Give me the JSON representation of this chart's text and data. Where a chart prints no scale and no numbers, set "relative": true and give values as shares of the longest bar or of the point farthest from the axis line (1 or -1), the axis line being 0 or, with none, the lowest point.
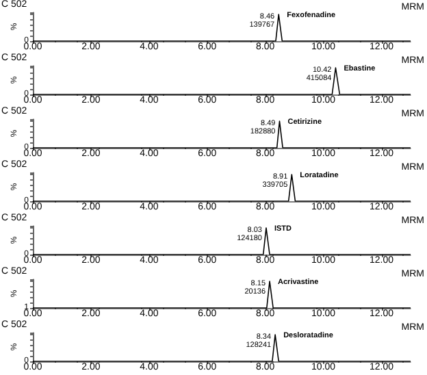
{
  "chart_data": [
    {
      "type": "line",
      "title": "C 502",
      "subtitle": "MRM",
      "ylabel": "%",
      "relative": true,
      "xlim": [
        0,
        13
      ],
      "xticks": [
        {
          "value": 0,
          "label": "0.00"
        },
        {
          "value": 2,
          "label": "2.00"
        },
        {
          "value": 4,
          "label": "4.00"
        },
        {
          "value": 6,
          "label": "6.00"
        },
        {
          "value": 8,
          "label": "8.00"
        },
        {
          "value": 10,
          "label": "10.00"
        },
        {
          "value": 12,
          "label": "12.00"
        }
      ],
      "annotations": [
        "0",
        {
          "text": "8.46\n139767",
          "x": 8.46,
          "y": 1
        }
      ],
      "series": [
        {
          "name": "Fexofenadine",
          "color": "#000000",
          "x": [
            0,
            8.36,
            8.46,
            8.58,
            13
          ],
          "values": [
            0,
            0,
            1,
            0,
            0
          ]
        }
      ]
    },
    {
      "type": "line",
      "title": "C 502",
      "subtitle": "MRM",
      "ylabel": "%",
      "relative": true,
      "xlim": [
        0,
        13
      ],
      "xticks": [
        {
          "value": 0,
          "label": "0.00"
        },
        {
          "value": 2,
          "label": "2.00"
        },
        {
          "value": 4,
          "label": "4.00"
        },
        {
          "value": 6,
          "label": "6.00"
        },
        {
          "value": 8,
          "label": "8.00"
        },
        {
          "value": 10,
          "label": "10.00"
        },
        {
          "value": 12,
          "label": "12.00"
        }
      ],
      "annotations": [
        "0",
        {
          "text": "10.42\n415084",
          "x": 10.42,
          "y": 1
        }
      ],
      "series": [
        {
          "name": "Ebastine",
          "color": "#000000",
          "x": [
            0,
            10.3,
            10.42,
            10.56,
            13
          ],
          "values": [
            0,
            0,
            1,
            0,
            0
          ]
        }
      ]
    },
    {
      "type": "line",
      "title": "C 502",
      "subtitle": "MRM",
      "ylabel": "%",
      "relative": true,
      "xlim": [
        0,
        13
      ],
      "xticks": [
        {
          "value": 0,
          "label": "0.00"
        },
        {
          "value": 2,
          "label": "2.00"
        },
        {
          "value": 4,
          "label": "4.00"
        },
        {
          "value": 6,
          "label": "6.00"
        },
        {
          "value": 8,
          "label": "8.00"
        },
        {
          "value": 10,
          "label": "10.00"
        },
        {
          "value": 12,
          "label": "12.00"
        }
      ],
      "annotations": [
        "0",
        {
          "text": "8.49\n182880",
          "x": 8.49,
          "y": 1
        }
      ],
      "series": [
        {
          "name": "Cetirizine",
          "color": "#000000",
          "x": [
            0,
            8.4,
            8.49,
            8.6,
            13
          ],
          "values": [
            0,
            0,
            1,
            0,
            0
          ]
        }
      ]
    },
    {
      "type": "line",
      "title": "C 502",
      "subtitle": "MRM",
      "ylabel": "%",
      "relative": true,
      "xlim": [
        0,
        13
      ],
      "xticks": [
        {
          "value": 0,
          "label": "0.00"
        },
        {
          "value": 2,
          "label": "2.00"
        },
        {
          "value": 4,
          "label": "4.00"
        },
        {
          "value": 6,
          "label": "6.00"
        },
        {
          "value": 8,
          "label": "8.00"
        },
        {
          "value": 10,
          "label": "10.00"
        },
        {
          "value": 12,
          "label": "12.00"
        }
      ],
      "annotations": [
        "0",
        {
          "text": "8.91\n339705",
          "x": 8.91,
          "y": 1
        }
      ],
      "series": [
        {
          "name": "Loratadine",
          "color": "#000000",
          "x": [
            0,
            8.8,
            8.91,
            9.03,
            13
          ],
          "values": [
            0,
            0,
            1,
            0,
            0
          ]
        }
      ]
    },
    {
      "type": "line",
      "title": "C 502",
      "subtitle": "MRM",
      "ylabel": "%",
      "relative": true,
      "xlim": [
        0,
        13
      ],
      "xticks": [
        {
          "value": 0,
          "label": "0.00"
        },
        {
          "value": 2,
          "label": "2.00"
        },
        {
          "value": 4,
          "label": "4.00"
        },
        {
          "value": 6,
          "label": "6.00"
        },
        {
          "value": 8,
          "label": "8.00"
        },
        {
          "value": 10,
          "label": "10.00"
        },
        {
          "value": 12,
          "label": "12.00"
        }
      ],
      "annotations": [
        "0",
        {
          "text": "8.03\n124180",
          "x": 8.03,
          "y": 1
        }
      ],
      "series": [
        {
          "name": "ISTD",
          "color": "#000000",
          "x": [
            0,
            7.93,
            8.03,
            8.15,
            13
          ],
          "values": [
            0,
            0,
            1,
            0,
            0
          ]
        }
      ]
    },
    {
      "type": "line",
      "title": "C 502",
      "subtitle": "MRM",
      "ylabel": "%",
      "relative": true,
      "xlim": [
        0,
        13
      ],
      "xticks": [
        {
          "value": 0,
          "label": "0.00"
        },
        {
          "value": 2,
          "label": "2.00"
        },
        {
          "value": 4,
          "label": "4.00"
        },
        {
          "value": 6,
          "label": "6.00"
        },
        {
          "value": 8,
          "label": "8.00"
        },
        {
          "value": 10,
          "label": "10.00"
        },
        {
          "value": 12,
          "label": "12.00"
        }
      ],
      "annotations": [
        "1",
        {
          "text": "8.15\n20136",
          "x": 8.15,
          "y": 1
        }
      ],
      "series": [
        {
          "name": "Acrivastine",
          "color": "#000000",
          "x": [
            0,
            8.05,
            8.15,
            8.27,
            13
          ],
          "values": [
            0,
            0,
            1,
            0,
            0
          ]
        }
      ]
    },
    {
      "type": "line",
      "title": "C 502",
      "subtitle": "MRM",
      "ylabel": "%",
      "relative": true,
      "xlim": [
        0,
        13
      ],
      "xticks": [
        {
          "value": 0,
          "label": "0.00"
        },
        {
          "value": 2,
          "label": "2.00"
        },
        {
          "value": 4,
          "label": "4.00"
        },
        {
          "value": 6,
          "label": "6.00"
        },
        {
          "value": 8,
          "label": "8.00"
        },
        {
          "value": 10,
          "label": "10.00"
        },
        {
          "value": 12,
          "label": "12.00"
        }
      ],
      "annotations": [
        "0",
        {
          "text": "8.34\n128241",
          "x": 8.34,
          "y": 1
        }
      ],
      "series": [
        {
          "name": "Desloratadine",
          "color": "#000000",
          "x": [
            0,
            8.24,
            8.34,
            8.46,
            13
          ],
          "values": [
            0,
            0,
            1,
            0,
            0
          ]
        }
      ]
    }
  ]
}
